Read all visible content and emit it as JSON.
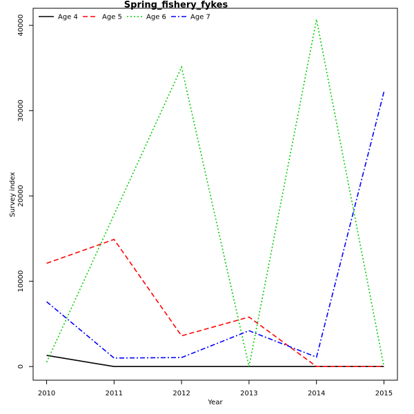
{
  "chart_data": {
    "type": "line",
    "title": "Spring_fishery_fykes",
    "xlabel": "Year",
    "ylabel": "Survey index",
    "x": [
      2010,
      2011,
      2012,
      2013,
      2014,
      2015
    ],
    "xlim": [
      2009.8,
      2015.2
    ],
    "ylim": [
      -1600,
      42000
    ],
    "yticks": [
      0,
      10000,
      20000,
      30000,
      40000
    ],
    "grid": false,
    "legend_position": "top-left",
    "series": [
      {
        "name": "Age 4",
        "values": [
          1300,
          0,
          0,
          0,
          0,
          0
        ],
        "color": "#000000",
        "dash": "solid"
      },
      {
        "name": "Age 5",
        "values": [
          12100,
          14900,
          3600,
          5800,
          0,
          0
        ],
        "color": "#ff0000",
        "dash": "dashed"
      },
      {
        "name": "Age 6",
        "values": [
          500,
          17800,
          35100,
          0,
          40700,
          0
        ],
        "color": "#00cd00",
        "dash": "dotted"
      },
      {
        "name": "Age 7",
        "values": [
          7600,
          1000,
          1050,
          4200,
          1100,
          32200
        ],
        "color": "#0000ff",
        "dash": "dashdot"
      }
    ]
  }
}
